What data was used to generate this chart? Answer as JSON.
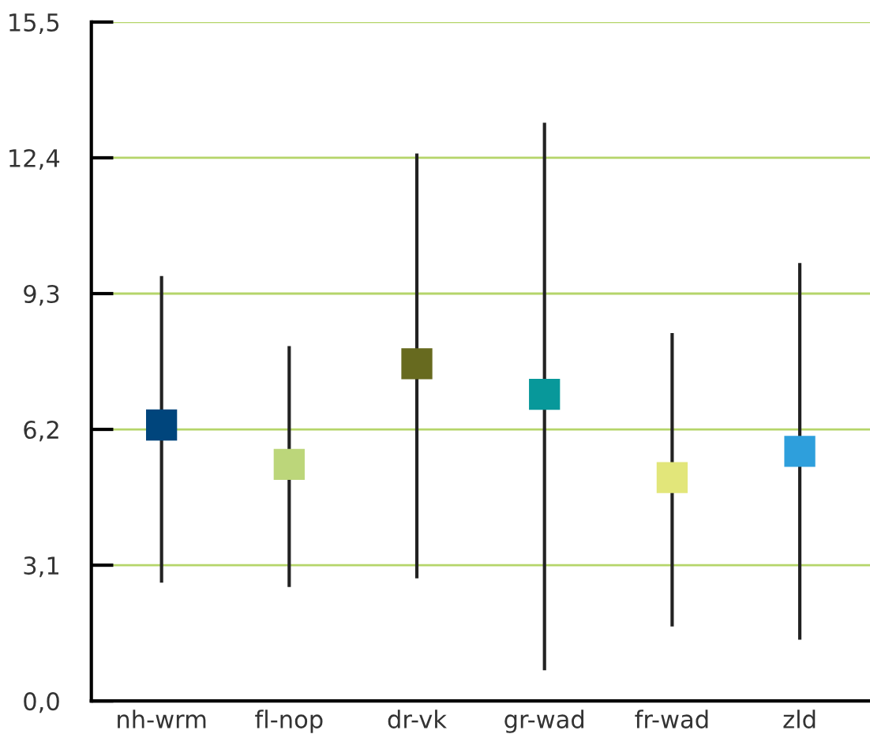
{
  "chart_data": {
    "type": "scatter",
    "marker": "square",
    "categories": [
      "nh-wrm",
      "fl-nop",
      "dr-vk",
      "gr-wad",
      "fr-wad",
      "zld"
    ],
    "values": [
      6.3,
      5.4,
      7.7,
      7.0,
      5.1,
      5.7
    ],
    "colors": [
      "#00457c",
      "#bcd67a",
      "#676a1f",
      "#08989a",
      "#e2e67a",
      "#2e9fdc"
    ],
    "errors": [
      [
        2.7,
        9.7
      ],
      [
        2.6,
        8.1
      ],
      [
        2.8,
        12.5
      ],
      [
        0.7,
        13.2
      ],
      [
        1.7,
        8.4
      ],
      [
        1.4,
        10.0
      ]
    ],
    "ylim": [
      0,
      15.5
    ],
    "yticks": [
      {
        "value": 0,
        "label": "0,0"
      },
      {
        "value": 3.1,
        "label": "3,1"
      },
      {
        "value": 6.2,
        "label": "6,2"
      },
      {
        "value": 9.3,
        "label": "9,3"
      },
      {
        "value": 12.4,
        "label": "12,4"
      },
      {
        "value": 15.5,
        "label": "15,5"
      }
    ],
    "grid": "y",
    "legend": false
  }
}
